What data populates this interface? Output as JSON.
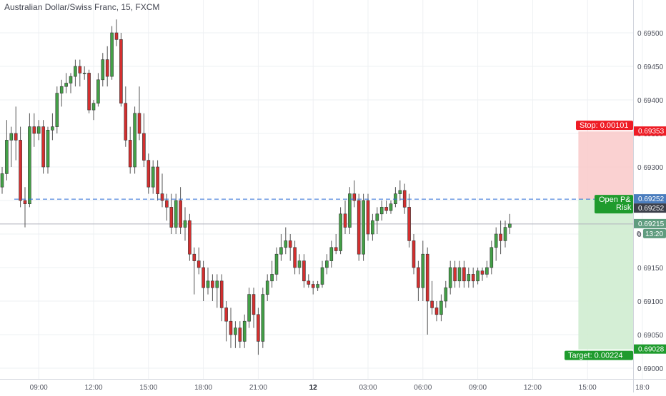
{
  "header": {
    "title": "Australian Dollar/Swiss Franc, 15, FXCM"
  },
  "colors": {
    "up": "#43a047",
    "down": "#d32f2f",
    "stop_zone": "#f9c9c9",
    "target_zone": "#cfecd0",
    "stop_tag": "#ee1c25",
    "target_tag": "#1f9b2d",
    "dash": "#2f6ed8",
    "grid": "#eef0f3",
    "axis_text": "#50535e",
    "price_tag_blue": "#4a7dbe",
    "last_tag": "#5f9c7f"
  },
  "chart_data": {
    "type": "candlestick",
    "ylim": [
      0.68975,
      0.69525
    ],
    "y_ticks": [
      "0.69000",
      "0.69050",
      "0.69100",
      "0.69150",
      "0.69200",
      "0.69250",
      "0.69300",
      "0.69350",
      "0.69400",
      "0.69450",
      "0.69500"
    ],
    "x_labels": [
      {
        "bar": 8,
        "text": "09:00"
      },
      {
        "bar": 20,
        "text": "12:00"
      },
      {
        "bar": 32,
        "text": "15:00"
      },
      {
        "bar": 44,
        "text": "18:00"
      },
      {
        "bar": 56,
        "text": "21:00"
      },
      {
        "bar": 68,
        "text": "12",
        "bold": true
      },
      {
        "bar": 80,
        "text": "03:00"
      },
      {
        "bar": 92,
        "text": "06:00"
      },
      {
        "bar": 104,
        "text": "09:00"
      },
      {
        "bar": 116,
        "text": "12:00"
      },
      {
        "bar": 128,
        "text": "15:00"
      },
      {
        "bar": 140,
        "text": "18:0"
      }
    ],
    "candles": [
      [
        0.6927,
        0.693,
        0.6926,
        0.6929
      ],
      [
        0.6929,
        0.6937,
        0.6928,
        0.6934
      ],
      [
        0.6934,
        0.6936,
        0.693,
        0.6935
      ],
      [
        0.6935,
        0.6939,
        0.6931,
        0.6934
      ],
      [
        0.6934,
        0.6936,
        0.6924,
        0.6925
      ],
      [
        0.6925,
        0.6927,
        0.6921,
        0.69245
      ],
      [
        0.69245,
        0.6938,
        0.6924,
        0.6936
      ],
      [
        0.6936,
        0.6938,
        0.6933,
        0.6935
      ],
      [
        0.6935,
        0.6937,
        0.6934,
        0.6936
      ],
      [
        0.6936,
        0.6937,
        0.6929,
        0.693
      ],
      [
        0.693,
        0.6936,
        0.6929,
        0.69355
      ],
      [
        0.69355,
        0.6938,
        0.6934,
        0.6936
      ],
      [
        0.6936,
        0.6942,
        0.6935,
        0.6941
      ],
      [
        0.6941,
        0.6943,
        0.6939,
        0.6942
      ],
      [
        0.6942,
        0.6944,
        0.6941,
        0.69425
      ],
      [
        0.69425,
        0.6944,
        0.6941,
        0.69435
      ],
      [
        0.69435,
        0.6946,
        0.6942,
        0.6945
      ],
      [
        0.6945,
        0.6946,
        0.6942,
        0.6944
      ],
      [
        0.6944,
        0.6945,
        0.6943,
        0.6944
      ],
      [
        0.6944,
        0.69445,
        0.6938,
        0.69385
      ],
      [
        0.69385,
        0.694,
        0.6937,
        0.69395
      ],
      [
        0.69395,
        0.6944,
        0.6939,
        0.6943
      ],
      [
        0.6943,
        0.6947,
        0.6942,
        0.6946
      ],
      [
        0.6946,
        0.6948,
        0.6942,
        0.69435
      ],
      [
        0.69435,
        0.6951,
        0.6943,
        0.695
      ],
      [
        0.695,
        0.6952,
        0.6948,
        0.6949
      ],
      [
        0.6949,
        0.695,
        0.6939,
        0.69395
      ],
      [
        0.69395,
        0.6942,
        0.6933,
        0.6934
      ],
      [
        0.6934,
        0.6936,
        0.6929,
        0.693
      ],
      [
        0.693,
        0.6939,
        0.6929,
        0.6938
      ],
      [
        0.6938,
        0.6942,
        0.6934,
        0.6935
      ],
      [
        0.6935,
        0.6938,
        0.693,
        0.6931
      ],
      [
        0.6931,
        0.6932,
        0.6926,
        0.6927
      ],
      [
        0.6927,
        0.6931,
        0.6926,
        0.693
      ],
      [
        0.693,
        0.6931,
        0.6925,
        0.6926
      ],
      [
        0.6926,
        0.6929,
        0.6924,
        0.6925
      ],
      [
        0.6925,
        0.6926,
        0.6922,
        0.6924
      ],
      [
        0.6924,
        0.6926,
        0.692,
        0.6921
      ],
      [
        0.6921,
        0.6926,
        0.692,
        0.6925
      ],
      [
        0.6925,
        0.6927,
        0.692,
        0.6921
      ],
      [
        0.6921,
        0.6924,
        0.6919,
        0.6922
      ],
      [
        0.6922,
        0.6923,
        0.6916,
        0.6917
      ],
      [
        0.6917,
        0.6918,
        0.6911,
        0.6916
      ],
      [
        0.6916,
        0.6918,
        0.6914,
        0.6915
      ],
      [
        0.6915,
        0.6916,
        0.691,
        0.6912
      ],
      [
        0.6912,
        0.6915,
        0.6911,
        0.6913
      ],
      [
        0.6913,
        0.6914,
        0.691,
        0.6912
      ],
      [
        0.6912,
        0.6914,
        0.6909,
        0.6913
      ],
      [
        0.6913,
        0.6914,
        0.6907,
        0.6909
      ],
      [
        0.6909,
        0.691,
        0.6904,
        0.6907
      ],
      [
        0.6907,
        0.6909,
        0.6903,
        0.6905
      ],
      [
        0.6905,
        0.6907,
        0.6903,
        0.6906
      ],
      [
        0.6906,
        0.6907,
        0.6903,
        0.6904
      ],
      [
        0.6904,
        0.6908,
        0.6903,
        0.6907
      ],
      [
        0.6907,
        0.6912,
        0.6906,
        0.6911
      ],
      [
        0.6911,
        0.6912,
        0.6906,
        0.6908
      ],
      [
        0.6908,
        0.6909,
        0.6902,
        0.6904
      ],
      [
        0.6904,
        0.6912,
        0.6903,
        0.6911
      ],
      [
        0.6911,
        0.6914,
        0.691,
        0.6913
      ],
      [
        0.6913,
        0.6916,
        0.6912,
        0.6914
      ],
      [
        0.6914,
        0.6918,
        0.6913,
        0.6917
      ],
      [
        0.6917,
        0.692,
        0.6916,
        0.6918
      ],
      [
        0.6918,
        0.6921,
        0.6917,
        0.6919
      ],
      [
        0.6919,
        0.692,
        0.6916,
        0.6918
      ],
      [
        0.6918,
        0.6919,
        0.6914,
        0.6915
      ],
      [
        0.6915,
        0.6917,
        0.6914,
        0.6916
      ],
      [
        0.6916,
        0.6917,
        0.6912,
        0.6913
      ],
      [
        0.6913,
        0.6914,
        0.6912,
        0.69125
      ],
      [
        0.69125,
        0.6913,
        0.6911,
        0.6912
      ],
      [
        0.6912,
        0.6913,
        0.69115,
        0.69125
      ],
      [
        0.69125,
        0.6916,
        0.6912,
        0.6915
      ],
      [
        0.6915,
        0.6917,
        0.6914,
        0.6916
      ],
      [
        0.6916,
        0.6919,
        0.6915,
        0.6918
      ],
      [
        0.6918,
        0.692,
        0.6917,
        0.69175
      ],
      [
        0.69175,
        0.6924,
        0.6917,
        0.6923
      ],
      [
        0.6923,
        0.6925,
        0.692,
        0.6921
      ],
      [
        0.6921,
        0.6927,
        0.692,
        0.6926
      ],
      [
        0.6926,
        0.6928,
        0.6924,
        0.6925
      ],
      [
        0.6925,
        0.6926,
        0.6916,
        0.6917
      ],
      [
        0.6917,
        0.6926,
        0.6916,
        0.6925
      ],
      [
        0.6925,
        0.6926,
        0.6919,
        0.692
      ],
      [
        0.692,
        0.6923,
        0.6919,
        0.6922
      ],
      [
        0.6922,
        0.6924,
        0.692,
        0.6923
      ],
      [
        0.6923,
        0.6925,
        0.6922,
        0.6924
      ],
      [
        0.6924,
        0.6925,
        0.6923,
        0.69235
      ],
      [
        0.69235,
        0.6925,
        0.6923,
        0.69245
      ],
      [
        0.69245,
        0.6927,
        0.6924,
        0.6926
      ],
      [
        0.6926,
        0.6928,
        0.6925,
        0.69265
      ],
      [
        0.69265,
        0.69275,
        0.6923,
        0.6924
      ],
      [
        0.6924,
        0.6926,
        0.6918,
        0.6919
      ],
      [
        0.6919,
        0.692,
        0.6914,
        0.6915
      ],
      [
        0.6915,
        0.6916,
        0.691,
        0.6912
      ],
      [
        0.6912,
        0.6919,
        0.691,
        0.6917
      ],
      [
        0.6917,
        0.6918,
        0.6905,
        0.691
      ],
      [
        0.691,
        0.6913,
        0.6908,
        0.6909
      ],
      [
        0.6909,
        0.691,
        0.6907,
        0.6908
      ],
      [
        0.6908,
        0.6911,
        0.6907,
        0.691
      ],
      [
        0.691,
        0.6913,
        0.6909,
        0.6912
      ],
      [
        0.6912,
        0.6916,
        0.6911,
        0.6915
      ],
      [
        0.6915,
        0.6916,
        0.6912,
        0.6913
      ],
      [
        0.6913,
        0.6916,
        0.6912,
        0.6915
      ],
      [
        0.6915,
        0.6916,
        0.6912,
        0.6913
      ],
      [
        0.6913,
        0.6915,
        0.6912,
        0.6914
      ],
      [
        0.6914,
        0.6915,
        0.6912,
        0.6913
      ],
      [
        0.6913,
        0.6915,
        0.69125,
        0.69145
      ],
      [
        0.69145,
        0.6915,
        0.6913,
        0.6914
      ],
      [
        0.6914,
        0.6916,
        0.69135,
        0.6915
      ],
      [
        0.6915,
        0.6919,
        0.6914,
        0.6918
      ],
      [
        0.6918,
        0.6921,
        0.6916,
        0.692
      ],
      [
        0.692,
        0.6922,
        0.6917,
        0.6919
      ],
      [
        0.6919,
        0.6922,
        0.6918,
        0.6921
      ],
      [
        0.6921,
        0.6923,
        0.692,
        0.69215
      ]
    ],
    "position": {
      "stop_price": 0.69353,
      "entry_price": 0.69252,
      "target_price": 0.69028,
      "start_bar": 126,
      "end_bar": 145,
      "stop_label": "Stop: 0.00101",
      "target_label": "Target: 0.00224",
      "open_label_1": "Open P&",
      "open_label_2": "Risk"
    },
    "last_price": 0.69215,
    "price_tags": {
      "stop": "0.69353",
      "entry_blue": "0.69252",
      "entry_dark": "0.69252",
      "last": "0.69215",
      "timer": "13:20",
      "timer_prefix": "0",
      "target": "0.69028"
    }
  }
}
